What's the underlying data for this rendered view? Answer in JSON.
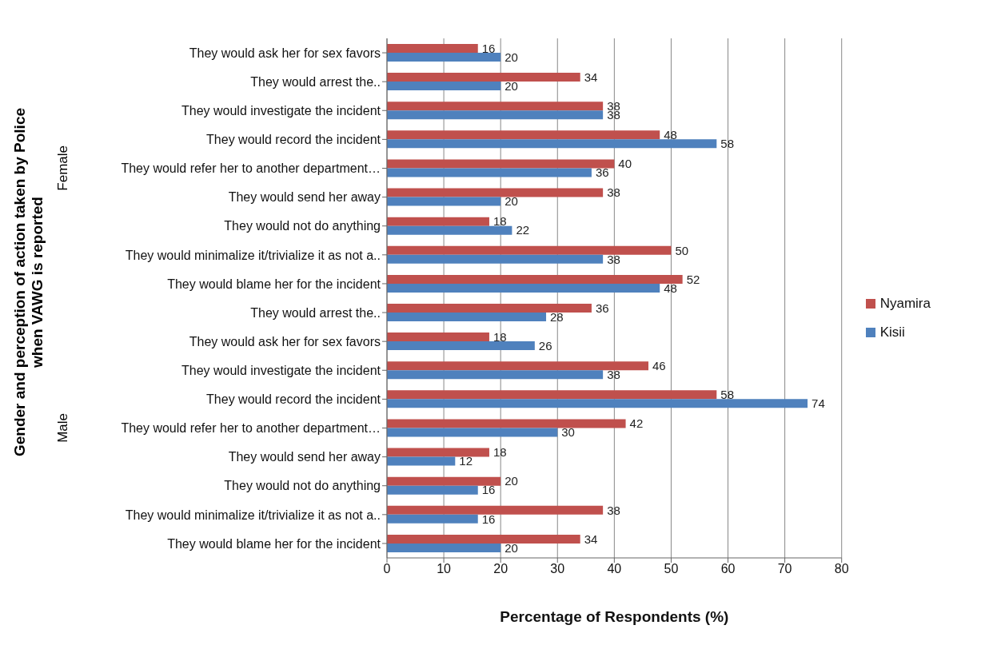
{
  "chart_data": {
    "type": "bar",
    "orientation": "horizontal",
    "ylabel": "Gender and perception of action taken by Police when VAWG is reported",
    "xlabel": "Percentage of Respondents (%)",
    "categories": [
      "They would ask her for sex favors",
      "They would arrest the..",
      "They would investigate the incident",
      "They would record the incident",
      "They would refer her to another department…",
      "They would send her away",
      "They would not do anything",
      "They would minimalize it/trivialize it as not a..",
      "They would blame her for the incident",
      "They would arrest the..",
      "They would ask her for sex favors",
      "They would investigate the incident",
      "They would record the incident",
      "They would refer her to another department…",
      "They would send her away",
      "They would not do anything",
      "They would minimalize it/trivialize it as not a..",
      "They would blame her for the incident"
    ],
    "annotations": [
      "Female",
      "Male"
    ],
    "series": [
      {
        "name": "Nyamira",
        "color": "#c0504d",
        "values": [
          16,
          34,
          38,
          48,
          40,
          38,
          18,
          50,
          52,
          36,
          18,
          46,
          58,
          42,
          18,
          20,
          38,
          34
        ]
      },
      {
        "name": "Kisii",
        "color": "#4f81bd",
        "values": [
          20,
          20,
          38,
          58,
          36,
          20,
          22,
          38,
          48,
          28,
          26,
          38,
          74,
          30,
          12,
          16,
          16,
          20
        ]
      }
    ],
    "xlim": [
      0,
      80
    ],
    "xticks": [
      0,
      10,
      20,
      30,
      40,
      50,
      60,
      70,
      80
    ],
    "grid": "x",
    "legend": "right",
    "data_labels": true
  }
}
